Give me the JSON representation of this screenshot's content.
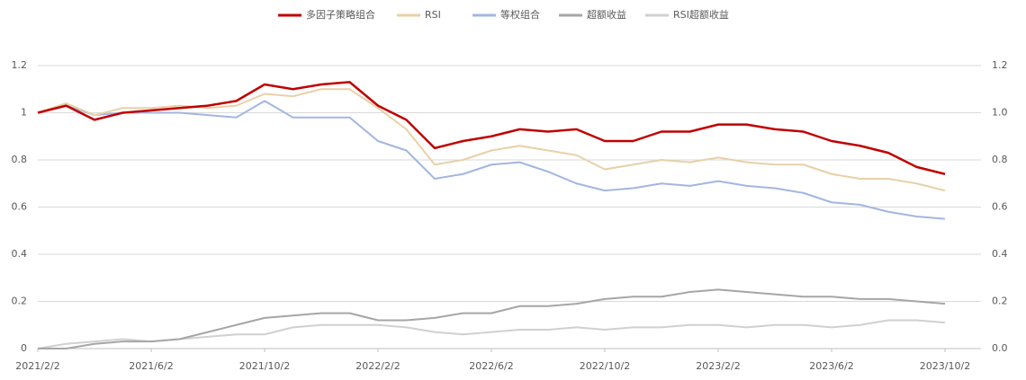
{
  "chart_data": {
    "type": "line",
    "x": [
      "2021/2/2",
      "2021/3/2",
      "2021/4/2",
      "2021/5/2",
      "2021/6/2",
      "2021/7/2",
      "2021/8/2",
      "2021/9/2",
      "2021/10/2",
      "2021/11/2",
      "2021/12/2",
      "2022/1/2",
      "2022/2/2",
      "2022/3/2",
      "2022/4/2",
      "2022/5/2",
      "2022/6/2",
      "2022/7/2",
      "2022/8/2",
      "2022/9/2",
      "2022/10/2",
      "2022/11/2",
      "2022/12/2",
      "2023/1/2",
      "2023/2/2",
      "2023/3/2",
      "2023/4/2",
      "2023/5/2",
      "2023/6/2",
      "2023/7/2",
      "2023/8/2",
      "2023/9/2",
      "2023/10/2"
    ],
    "xticks": [
      "2021/2/2",
      "2021/6/2",
      "2021/10/2",
      "2022/2/2",
      "2022/6/2",
      "2022/10/2",
      "2023/2/2",
      "2023/6/2",
      "2023/10/2"
    ],
    "series": [
      {
        "name": "多因子策略组合",
        "color": "#c00000",
        "values": [
          1.0,
          1.03,
          0.97,
          1.0,
          1.01,
          1.02,
          1.03,
          1.05,
          1.12,
          1.1,
          1.12,
          1.13,
          1.03,
          0.97,
          0.85,
          0.88,
          0.9,
          0.93,
          0.92,
          0.93,
          0.88,
          0.88,
          0.92,
          0.92,
          0.95,
          0.95,
          0.93,
          0.92,
          0.88,
          0.86,
          0.83,
          0.77,
          0.74
        ]
      },
      {
        "name": "RSI",
        "color": "#e8d0a8",
        "values": [
          1.0,
          1.04,
          0.99,
          1.02,
          1.02,
          1.03,
          1.02,
          1.03,
          1.08,
          1.07,
          1.1,
          1.1,
          1.02,
          0.93,
          0.78,
          0.8,
          0.84,
          0.86,
          0.84,
          0.82,
          0.76,
          0.78,
          0.8,
          0.79,
          0.81,
          0.79,
          0.78,
          0.78,
          0.74,
          0.72,
          0.72,
          0.7,
          0.67
        ]
      },
      {
        "name": "等权组合",
        "color": "#a3b6e0",
        "values": [
          1.0,
          1.03,
          0.99,
          1.0,
          1.0,
          1.0,
          0.99,
          0.98,
          1.05,
          0.98,
          0.98,
          0.98,
          0.88,
          0.84,
          0.72,
          0.74,
          0.78,
          0.79,
          0.75,
          0.7,
          0.67,
          0.68,
          0.7,
          0.69,
          0.71,
          0.69,
          0.68,
          0.66,
          0.62,
          0.61,
          0.58,
          0.56,
          0.55
        ]
      },
      {
        "name": "超额收益",
        "color": "#a6a6a6",
        "values": [
          0,
          0,
          0.02,
          0.03,
          0.03,
          0.04,
          0.07,
          0.1,
          0.13,
          0.14,
          0.15,
          0.15,
          0.12,
          0.12,
          0.13,
          0.15,
          0.15,
          0.18,
          0.18,
          0.19,
          0.21,
          0.22,
          0.22,
          0.24,
          0.25,
          0.24,
          0.23,
          0.22,
          0.22,
          0.21,
          0.21,
          0.2,
          0.19
        ]
      },
      {
        "name": "RSI超额收益",
        "color": "#d0d0d0",
        "values": [
          0,
          0.02,
          0.03,
          0.04,
          0.03,
          0.04,
          0.05,
          0.06,
          0.06,
          0.09,
          0.1,
          0.1,
          0.1,
          0.09,
          0.07,
          0.06,
          0.07,
          0.08,
          0.08,
          0.09,
          0.08,
          0.09,
          0.09,
          0.1,
          0.1,
          0.09,
          0.1,
          0.1,
          0.09,
          0.1,
          0.12,
          0.12,
          0.11
        ]
      }
    ],
    "ylim": [
      0,
      1.2
    ],
    "yticks": [
      0,
      0.2,
      0.4,
      0.6,
      0.8,
      1,
      1.2
    ],
    "y2lim": [
      0,
      1.2
    ],
    "y2ticks": [
      {
        "value": 0,
        "label": "0.0"
      },
      0.2,
      0.4,
      0.6,
      0.8,
      {
        "value": 1,
        "label": "1.0"
      },
      1.2
    ],
    "grid": true,
    "legend": "top"
  }
}
